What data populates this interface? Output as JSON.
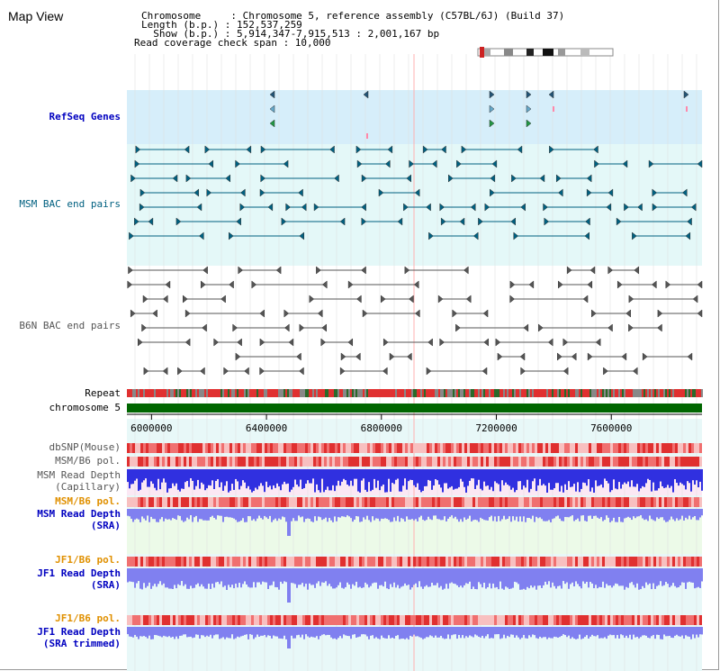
{
  "title": "Map View",
  "info": {
    "chromosome_label": "Chromosome     : Chromosome 5, reference assembly (C57BL/6J) (Build 37)",
    "length_label": "Length (b.p.) : 152,537,259",
    "show_label": "  Show (b.p.) : 5,914,347-7,915,513 : 2,001,167 bp",
    "coverage_label": "Read coverage check span : 10,000"
  },
  "tracks": {
    "refseq_genes": "RefSeq Genes",
    "msm_bac": "MSM BAC end pairs",
    "b6n_bac": "B6N BAC end pairs",
    "repeat": "Repeat",
    "chromosome": "chromosome 5",
    "dbsnp": "dbSNP(Mouse)",
    "msm_b6_pol_1": "MSM/B6 pol.",
    "msm_read_depth_cap_1": "MSM Read Depth",
    "msm_read_depth_cap_2": "(Capillary)",
    "msm_b6_pol_2": "MSM/B6 pol.",
    "msm_read_depth_sra_1": "MSM Read Depth",
    "msm_read_depth_sra_2": "(SRA)",
    "jf1_b6_pol_1": "JF1/B6 pol.",
    "jf1_read_depth_sra_1": "JF1 Read Depth",
    "jf1_read_depth_sra_2": "(SRA)",
    "jf1_b6_pol_2": "JF1/B6 pol.",
    "jf1_read_depth_trim_1": "JF1 Read Depth",
    "jf1_read_depth_trim_2": "(SRA trimmed)"
  },
  "axis": {
    "range": [
      5914347,
      7915513
    ],
    "ticks": [
      {
        "value": 6000000,
        "label": "6000000"
      },
      {
        "value": 6400000,
        "label": "6400000"
      },
      {
        "value": 6800000,
        "label": "6800000"
      },
      {
        "value": 7200000,
        "label": "7200000"
      },
      {
        "value": 7600000,
        "label": "7600000"
      }
    ]
  },
  "colors": {
    "refseq_bg": "#d6eefa",
    "msm_bg": "#e4f8f8",
    "chromosome_bar": "#006600",
    "depth_blue": "#3030e0",
    "depth_light_blue": "#8080f0",
    "pol_red": "#e04040",
    "msm_teal": "#006080",
    "b6n_gray": "#555555"
  }
}
